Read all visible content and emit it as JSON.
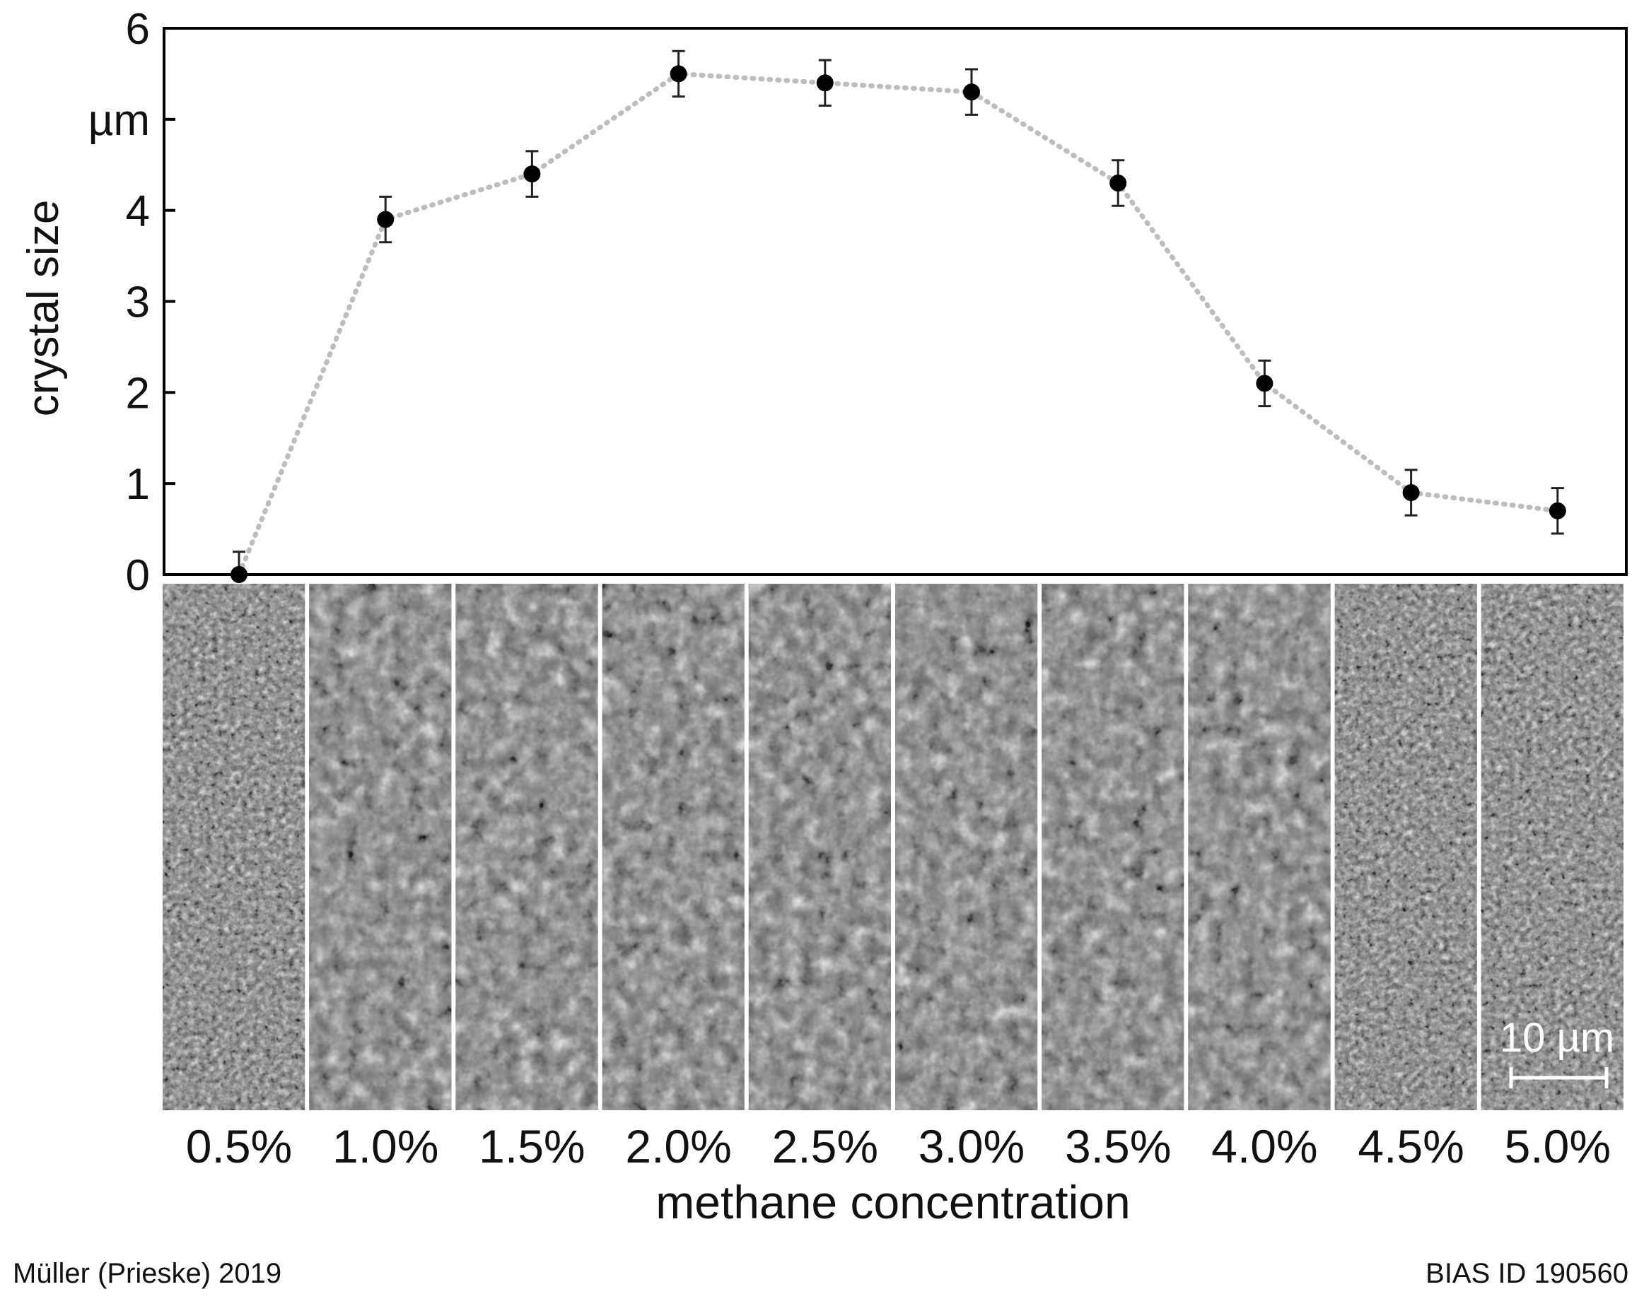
{
  "chart_data": {
    "type": "scatter",
    "xlabel": "methane concentration",
    "ylabel": "crystal size",
    "y_unit_label": "µm",
    "ylim": [
      0,
      6
    ],
    "y_ticks": [
      "0",
      "1",
      "2",
      "3",
      "4",
      "6"
    ],
    "categories": [
      "0.5%",
      "1.0%",
      "1.5%",
      "2.0%",
      "2.5%",
      "3.0%",
      "3.5%",
      "4.0%",
      "4.5%",
      "5.0%"
    ],
    "series": [
      {
        "values": [
          0.0,
          3.9,
          4.4,
          5.5,
          5.4,
          5.3,
          4.3,
          2.1,
          0.9,
          0.7
        ],
        "errors": [
          0.25,
          0.25,
          0.25,
          0.25,
          0.25,
          0.25,
          0.25,
          0.25,
          0.25,
          0.25
        ]
      }
    ],
    "connector": "dotted",
    "grid": false,
    "legend": "none",
    "micrograph_strip": {
      "scale_bar_label": "10 µm"
    }
  },
  "credits": {
    "left": "Müller (Prieske) 2019",
    "right": "BIAS ID 190560"
  },
  "colors": {
    "points": "#000000",
    "connector": "#bdbdbd",
    "frame": "#000000",
    "text": "#111111"
  }
}
